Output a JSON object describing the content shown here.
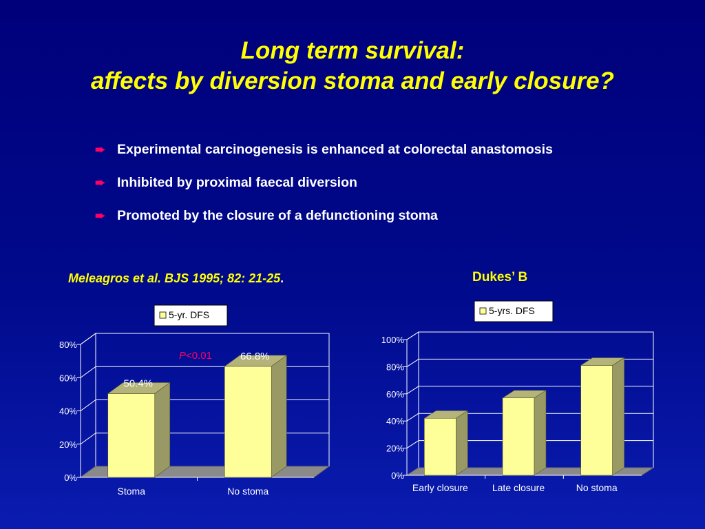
{
  "title": {
    "line1": "Long term survival:",
    "line2": "affects by diversion stoma and early closure?"
  },
  "bullets": [
    "Experimental carcinogenesis is enhanced at colorectal anastomosis",
    "Inhibited by proximal faecal diversion",
    "Promoted by the closure of a defunctioning stoma"
  ],
  "citation": {
    "text": "Meleagros et al. BJS 1995; 82: 21-25",
    "trailing": "."
  },
  "right_subtitle": "Dukes’ B",
  "annotation": {
    "p_italic": "P",
    "p_rest": "<0.01"
  },
  "colors": {
    "title": "#ffff00",
    "bullet_arrow": "#ff0066",
    "bar_front": "#ffff99",
    "bar_side": "#999966",
    "bar_top": "#b3b37a",
    "floor": "#8a8a8a",
    "grid": "#ffffff"
  },
  "chart_data": [
    {
      "type": "bar",
      "categories": [
        "Stoma",
        "No stoma"
      ],
      "series": [
        {
          "name": "5-yr. DFS",
          "values": [
            50.4,
            66.8
          ]
        }
      ],
      "data_labels": [
        "50.4%",
        "66.8%"
      ],
      "yticks": [
        "0%",
        "20%",
        "40%",
        "60%",
        "80%"
      ],
      "ylim": [
        0,
        80
      ],
      "grid": true,
      "legend_position": "top"
    },
    {
      "type": "bar",
      "categories": [
        "Early closure",
        "Late closure",
        "No stoma"
      ],
      "series": [
        {
          "name": "5-yrs. DFS",
          "values": [
            42,
            57,
            81
          ]
        }
      ],
      "yticks": [
        "0%",
        "20%",
        "40%",
        "60%",
        "80%",
        "100%"
      ],
      "ylim": [
        0,
        100
      ],
      "grid": true,
      "legend_position": "top"
    }
  ]
}
